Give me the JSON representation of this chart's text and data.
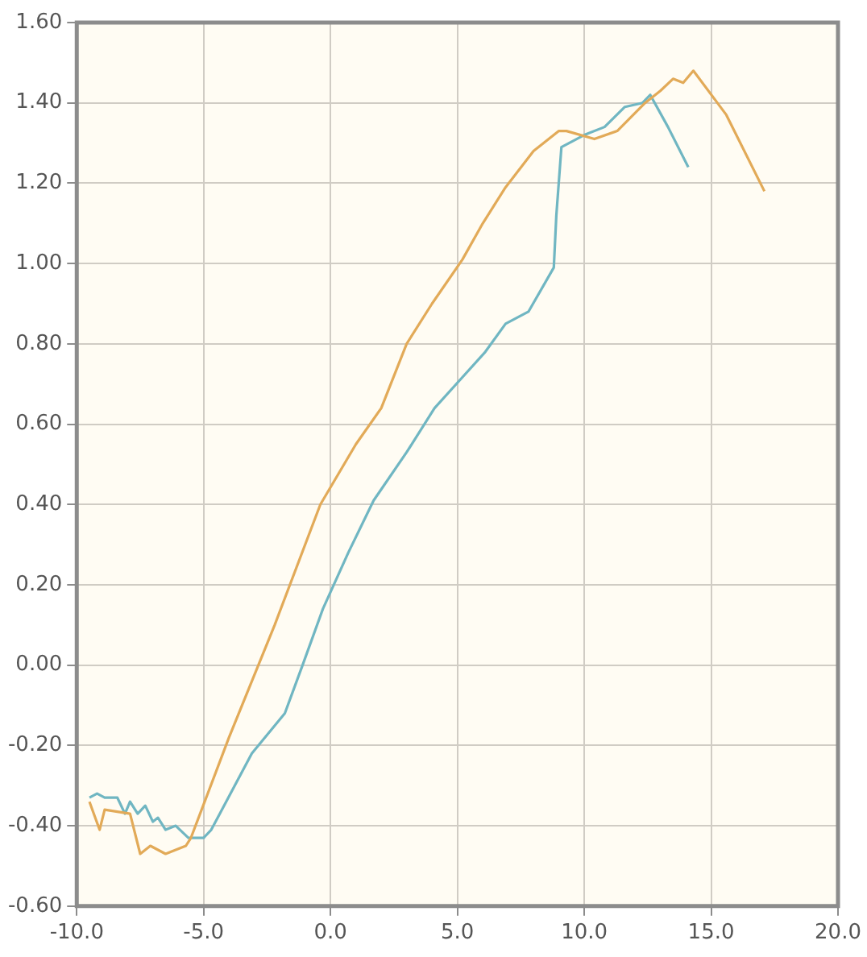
{
  "chart_data": {
    "type": "line",
    "xlim": [
      -10,
      20
    ],
    "ylim": [
      -0.6,
      1.6
    ],
    "xticks": [
      {
        "value": -10,
        "label": "-10.0"
      },
      {
        "value": -5,
        "label": "-5.0"
      },
      {
        "value": 0,
        "label": "0.0"
      },
      {
        "value": 5,
        "label": "5.0"
      },
      {
        "value": 10,
        "label": "10.0"
      },
      {
        "value": 15,
        "label": "15.0"
      },
      {
        "value": 20,
        "label": "20.0"
      }
    ],
    "yticks": [
      {
        "value": -0.6,
        "label": "-0.60"
      },
      {
        "value": -0.4,
        "label": "-0.40"
      },
      {
        "value": -0.2,
        "label": "-0.20"
      },
      {
        "value": 0,
        "label": "0.00"
      },
      {
        "value": 0.2,
        "label": "0.20"
      },
      {
        "value": 0.4,
        "label": "0.40"
      },
      {
        "value": 0.6,
        "label": "0.60"
      },
      {
        "value": 0.8,
        "label": "0.80"
      },
      {
        "value": 1,
        "label": "1.00"
      },
      {
        "value": 1.2,
        "label": "1.20"
      },
      {
        "value": 1.4,
        "label": "1.40"
      },
      {
        "value": 1.6,
        "label": "1.60"
      }
    ],
    "grid": true,
    "legend": false,
    "marker": "none",
    "line_style": "solid",
    "series": [
      {
        "color": "#e2aa58",
        "x": [
          -9.5,
          -9.1,
          -8.9,
          -7.9,
          -7.5,
          -7.1,
          -6.5,
          -5.7,
          -5.5,
          -4,
          -2.2,
          -0.4,
          1,
          2,
          3,
          4,
          5.2,
          6,
          6.9,
          8,
          9,
          9.3,
          10.4,
          11.3,
          12.4,
          13,
          13.5,
          13.9,
          14.3,
          15.6,
          17.1
        ],
        "values": [
          -0.34,
          -0.41,
          -0.36,
          -0.37,
          -0.47,
          -0.45,
          -0.47,
          -0.45,
          -0.43,
          -0.18,
          0.1,
          0.4,
          0.55,
          0.64,
          0.8,
          0.9,
          1.01,
          1.1,
          1.19,
          1.28,
          1.33,
          1.33,
          1.31,
          1.33,
          1.4,
          1.43,
          1.46,
          1.45,
          1.48,
          1.37,
          1.18
        ]
      },
      {
        "color": "#70b6c2",
        "x": [
          -9.5,
          -9.2,
          -8.9,
          -8.4,
          -8.1,
          -7.9,
          -7.6,
          -7.3,
          -7,
          -6.8,
          -6.5,
          -6.1,
          -5.6,
          -5,
          -4.7,
          -3.1,
          -1.8,
          -1.1,
          -0.3,
          0.7,
          1.7,
          3,
          4.1,
          5.1,
          6.1,
          6.9,
          7.8,
          8.8,
          8.9,
          9.1,
          10,
          10.8,
          11.6,
          12.3,
          12.6,
          13.3,
          14.1
        ],
        "values": [
          -0.33,
          -0.32,
          -0.33,
          -0.33,
          -0.37,
          -0.34,
          -0.37,
          -0.35,
          -0.39,
          -0.38,
          -0.41,
          -0.4,
          -0.43,
          -0.43,
          -0.41,
          -0.22,
          -0.12,
          0,
          0.14,
          0.28,
          0.41,
          0.53,
          0.64,
          0.71,
          0.78,
          0.85,
          0.88,
          0.99,
          1.12,
          1.29,
          1.32,
          1.34,
          1.39,
          1.4,
          1.42,
          1.34,
          1.24
        ]
      }
    ]
  }
}
